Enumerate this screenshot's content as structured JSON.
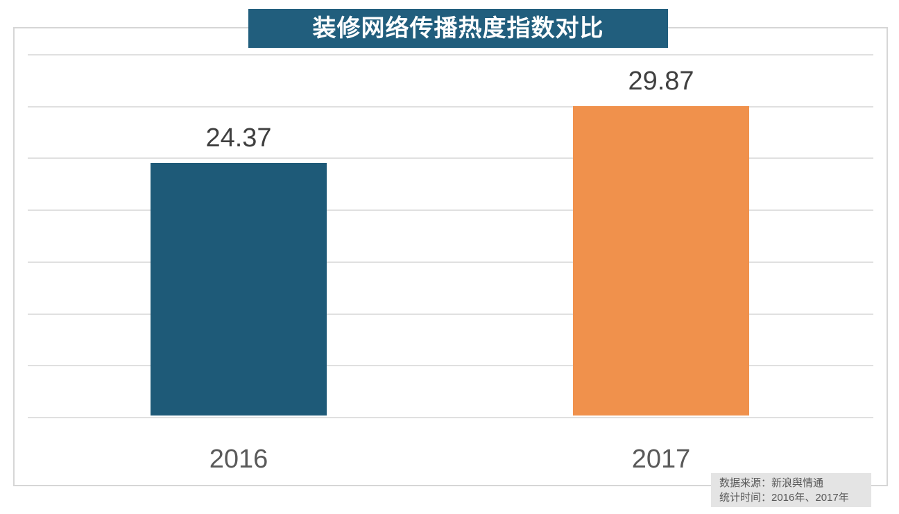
{
  "title_banner": {
    "text": "装修网络传播热度指数对比",
    "bg": "#215e7d",
    "text_color": "#ffffff"
  },
  "chart_data": {
    "type": "bar",
    "title": "装修网络传播热度指数对比",
    "categories": [
      "2016",
      "2017"
    ],
    "values": [
      24.37,
      29.87
    ],
    "value_labels": [
      "24.37",
      "29.87"
    ],
    "bar_colors": [
      "#1e5a78",
      "#f0914c"
    ],
    "xlabel": "",
    "ylabel": "",
    "ylim": [
      0,
      35
    ],
    "gridline_step": 5,
    "grid": true,
    "y_tick_labels_visible": false,
    "legend": null
  },
  "source_box": {
    "bg": "#e4e4e4",
    "text_color": "#595959",
    "lines": [
      "数据来源：新浪舆情通",
      "统计时间：2016年、2017年"
    ]
  },
  "colors": {
    "gridline": "#e0e0e0",
    "frame_border": "#d6d6d6",
    "value_label": "#3f3f3f",
    "axis_label": "#595959",
    "background": "#ffffff"
  }
}
